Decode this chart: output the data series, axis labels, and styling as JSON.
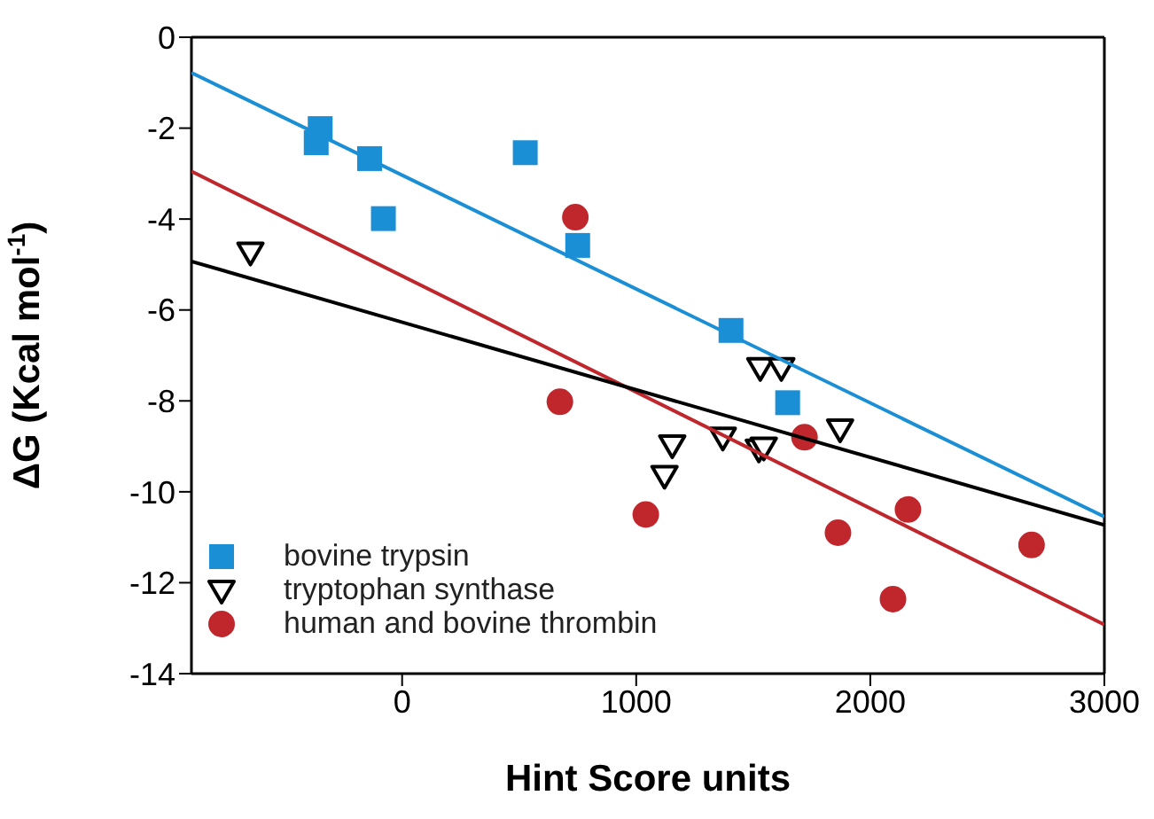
{
  "chart_data": {
    "type": "scatter",
    "xlabel": "Hint Score units",
    "ylabel": "ΔG (Kcal mol$^{-1}$)",
    "xlim": [
      -900,
      3000
    ],
    "xticks": [
      0,
      1000,
      2000,
      3000
    ],
    "ylim": [
      -14,
      0
    ],
    "yticks": [
      -14,
      -12,
      -10,
      -8,
      -6,
      -4,
      -2,
      0
    ],
    "legend": "bottom left",
    "series": [
      {
        "name": "bovine trypsin",
        "marker": "square",
        "color": "#1b8fd6",
        "x": [
          -350,
          -367,
          -139,
          -80,
          526,
          750,
          1405,
          1647
        ],
        "values": [
          -2.01,
          -2.32,
          -2.67,
          -3.99,
          -2.54,
          -4.58,
          -6.45,
          -8.04
        ]
      },
      {
        "name": "tryptophan synthase",
        "marker": "triangle",
        "color": "#000000",
        "x": [
          -648,
          1530,
          1620,
          1154,
          1121,
          1370,
          1524,
          1545,
          1871
        ],
        "values": [
          -4.73,
          -7.27,
          -7.27,
          -8.97,
          -9.64,
          -8.8,
          -9.06,
          -9.02,
          -8.62
        ]
      },
      {
        "name": "human and bovine thrombin",
        "marker": "circle",
        "color": "#c0272d",
        "x": [
          740,
          674,
          1041,
          1719,
          1862,
          2161,
          2097,
          2689
        ],
        "values": [
          -3.96,
          -8.02,
          -10.5,
          -8.8,
          -10.9,
          -10.39,
          -12.36,
          -11.17
        ]
      },
      {
        "type": "line",
        "color": "#1b8fd6",
        "x": [
          -900,
          3000
        ],
        "values": [
          -0.78,
          -10.55
        ]
      },
      {
        "type": "line",
        "color": "#c0272d",
        "x": [
          -900,
          3000
        ],
        "values": [
          -2.95,
          -12.92
        ]
      },
      {
        "type": "line",
        "color": "#000000",
        "x": [
          -900,
          3000
        ],
        "values": [
          -4.93,
          -10.73
        ]
      }
    ]
  }
}
